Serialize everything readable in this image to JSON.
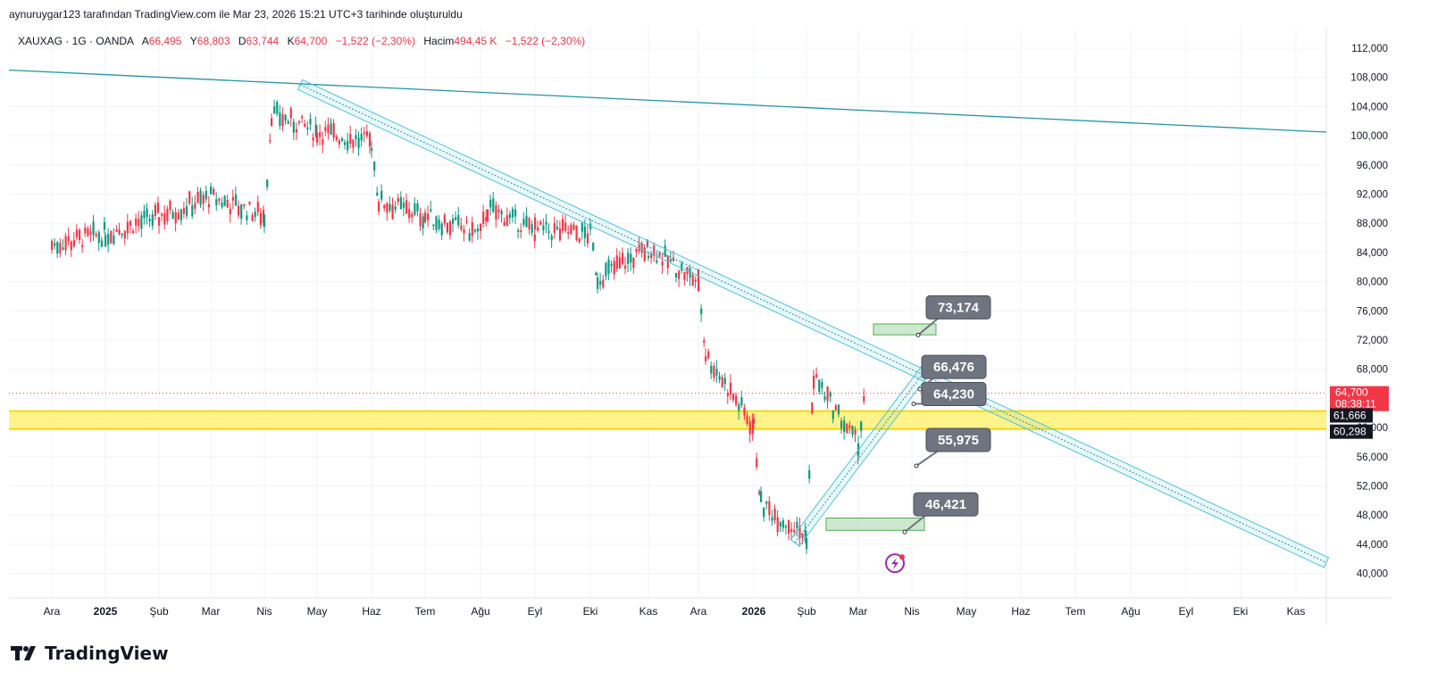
{
  "header": {
    "caption": "aynuruygar123 tarafından TradingView.com ile Mar 23, 2026 15:21 UTC+3 tarihinde oluşturuldu"
  },
  "legend": {
    "symbol": "XAUXAG · 1G · OANDA",
    "open_label": "A",
    "open": "66,495",
    "high_label": "Y",
    "high": "68,803",
    "low_label": "D",
    "low": "63,744",
    "close_label": "K",
    "close": "64,700",
    "change": "−1,522 (−2,30%)",
    "volume_label": "Hacim",
    "volume": "494,45 K",
    "volume_change": "−1,522 (−2,30%)"
  },
  "branding": {
    "logo_text": "TradingView"
  },
  "colors": {
    "up": "#089981",
    "down": "#f23645",
    "trend": "#2196a3",
    "channel": "#4fc3d9",
    "zone": "#fff176",
    "zone_border": "#f5d90a",
    "label_bg": "#6f7480",
    "box": "#a5d6a7",
    "price_tag": "#f23645"
  },
  "chart_data": {
    "type": "candlestick",
    "title": "",
    "symbol": "XAUXAG",
    "timeframe": "1G",
    "y_axis": {
      "ylim": [
        37500,
        115000
      ],
      "ticks": [
        "112,000",
        "108,000",
        "104,000",
        "100,000",
        "96,000",
        "92,000",
        "88,000",
        "84,000",
        "80,000",
        "76,000",
        "72,000",
        "68,000",
        "64,000",
        "60,000",
        "56,000",
        "52,000",
        "48,000",
        "44,000",
        "40,000"
      ]
    },
    "x_axis": {
      "labels": [
        "Ara",
        "2025",
        "Şub",
        "Mar",
        "Nis",
        "May",
        "Haz",
        "Tem",
        "Ağu",
        "Eyl",
        "Eki",
        "Kas",
        "Ara",
        "2026",
        "Şub",
        "Mar",
        "Nis",
        "May",
        "Haz",
        "Tem",
        "Ağu",
        "Eyl",
        "Eki",
        "Kas"
      ],
      "bold_labels": [
        "2025",
        "2026"
      ]
    },
    "price_path": [
      [
        "Ara",
        85000
      ],
      [
        "2025",
        86500
      ],
      [
        "Şub",
        89000
      ],
      [
        "Mar",
        91500
      ],
      [
        "Nis",
        89000
      ],
      [
        "Nis",
        103000
      ],
      [
        "May",
        100500
      ],
      [
        "Haz",
        99000
      ],
      [
        "Haz",
        91000
      ],
      [
        "Tem",
        89000
      ],
      [
        "Ağu",
        86500
      ],
      [
        "Ağu",
        90000
      ],
      [
        "Eyl",
        87000
      ],
      [
        "Eki",
        86500
      ],
      [
        "Eki",
        80500
      ],
      [
        "Kas",
        84500
      ],
      [
        "Ara",
        80000
      ],
      [
        "Ara",
        70000
      ],
      [
        "2026",
        60000
      ],
      [
        "2026",
        49500
      ],
      [
        "Şub",
        45000
      ],
      [
        "Şub",
        67000
      ],
      [
        "Mar",
        57500
      ],
      [
        "Mar",
        64700
      ]
    ],
    "last_price": {
      "value": "64,700",
      "countdown": "08:38:11"
    },
    "zone": {
      "label_top": "61,666",
      "label_bottom": "60,298",
      "low": 60298,
      "high": 61666
    },
    "trendlines": [
      {
        "kind": "line",
        "from": [
          "Ara",
          109000
        ],
        "to": [
          "Kas",
          100500
        ]
      },
      {
        "kind": "channel",
        "from": [
          "Nis",
          107000
        ],
        "to": [
          "Kas",
          42000
        ]
      },
      {
        "kind": "channel",
        "from": [
          "Şub",
          44500
        ],
        "to": [
          "Nis",
          69000
        ]
      }
    ],
    "annotations": [
      {
        "text": "73,174",
        "value": 73174
      },
      {
        "text": "66,476",
        "value": 66476
      },
      {
        "text": "64,230",
        "value": 64230
      },
      {
        "text": "55,975",
        "value": 55975
      },
      {
        "text": "46,421",
        "value": 46421
      }
    ]
  }
}
